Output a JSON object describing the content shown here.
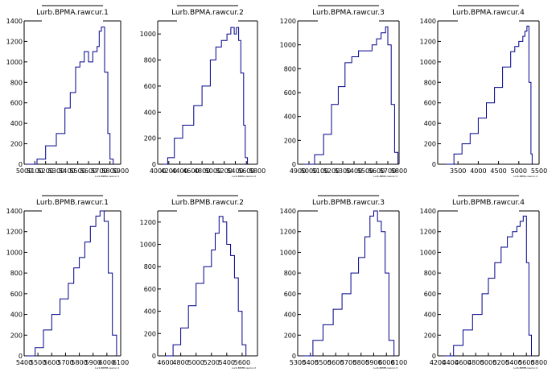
{
  "colors": {
    "hist": "#00008b",
    "axis": "#000000",
    "frame": "#000000",
    "background": "#ffffff"
  },
  "chart_data": [
    {
      "type": "histogram",
      "title": "Lurb.BPMA.rawcur.1",
      "xlabel": "Lurb.BPMA.rawcur.1",
      "xlim": [
        5000,
        5900
      ],
      "ylim": [
        0,
        1400
      ],
      "xticks": [
        5000,
        5100,
        5200,
        5300,
        5400,
        5500,
        5600,
        5700,
        5800,
        5900
      ],
      "xtick_labels": [
        "5000",
        "5100",
        "5200",
        "5300",
        "5400",
        "5500",
        "5600",
        "5700",
        "5800",
        "5900"
      ],
      "yticks": [
        0,
        200,
        400,
        600,
        800,
        1000,
        1200,
        1400
      ],
      "ytick_labels": [
        "0",
        "200",
        "400",
        "600",
        "800",
        "1000",
        "1200",
        "1400"
      ],
      "x": [
        5030,
        5120,
        5200,
        5300,
        5380,
        5430,
        5480,
        5520,
        5560,
        5600,
        5640,
        5680,
        5700,
        5720,
        5750,
        5780,
        5800,
        5830
      ],
      "values": [
        0,
        50,
        180,
        300,
        550,
        700,
        950,
        1000,
        1100,
        1000,
        1100,
        1150,
        1300,
        1340,
        900,
        300,
        50,
        0
      ]
    },
    {
      "type": "histogram",
      "title": "Lurb.BPMA.rawcur.2",
      "xlabel": "Lurb.BPMA.rawcur.2",
      "xlim": [
        4000,
        5800
      ],
      "ylim": [
        0,
        1100
      ],
      "xticks": [
        4000,
        4200,
        4400,
        4600,
        4800,
        5000,
        5200,
        5400,
        5600,
        5800
      ],
      "xtick_labels": [
        "4000",
        "4200",
        "4400",
        "4600",
        "4800",
        "5000",
        "5200",
        "5400",
        "5600",
        "5800"
      ],
      "yticks": [
        0,
        200,
        400,
        600,
        800,
        1000
      ],
      "ytick_labels": [
        "0",
        "200",
        "400",
        "600",
        "800",
        "1000"
      ],
      "x": [
        4100,
        4180,
        4300,
        4450,
        4650,
        4800,
        4950,
        5050,
        5150,
        5250,
        5320,
        5380,
        5420,
        5460,
        5500,
        5550,
        5580,
        5620
      ],
      "values": [
        0,
        50,
        200,
        300,
        450,
        600,
        800,
        900,
        950,
        1000,
        1050,
        1000,
        1050,
        950,
        700,
        300,
        50,
        0
      ]
    },
    {
      "type": "histogram",
      "title": "Lurb.BPMA.rawcur.3",
      "xlabel": "Lurb.BPMA.rawcur.3",
      "xlim": [
        4900,
        5800
      ],
      "ylim": [
        0,
        1200
      ],
      "xticks": [
        4900,
        5000,
        5100,
        5200,
        5300,
        5400,
        5500,
        5600,
        5700,
        5800
      ],
      "xtick_labels": [
        "4900",
        "5000",
        "5100",
        "5200",
        "5300",
        "5400",
        "5500",
        "5600",
        "5700",
        "5800"
      ],
      "yticks": [
        0,
        200,
        400,
        600,
        800,
        1000,
        1200
      ],
      "ytick_labels": [
        "0",
        "200",
        "400",
        "600",
        "800",
        "1000",
        "1200"
      ],
      "x": [
        4960,
        5050,
        5130,
        5200,
        5260,
        5320,
        5380,
        5440,
        5500,
        5560,
        5600,
        5640,
        5680,
        5700,
        5730,
        5760,
        5790
      ],
      "values": [
        0,
        80,
        250,
        500,
        650,
        850,
        900,
        950,
        950,
        1000,
        1050,
        1100,
        1150,
        1000,
        500,
        100,
        0
      ]
    },
    {
      "type": "histogram",
      "title": "Lurb.BPMA.rawcur.4",
      "xlabel": "Lurb.BPMA.rawcur.4",
      "xlim": [
        3000,
        5500
      ],
      "ylim": [
        0,
        1400
      ],
      "xticks": [
        3500,
        4000,
        4500,
        5000,
        5500
      ],
      "xtick_labels": [
        "3500",
        "4000",
        "4500",
        "5000",
        "5500"
      ],
      "yticks": [
        0,
        200,
        400,
        600,
        800,
        1000,
        1200,
        1400
      ],
      "ytick_labels": [
        "0",
        "200",
        "400",
        "600",
        "800",
        "1000",
        "1200",
        "1400"
      ],
      "x": [
        3200,
        3400,
        3600,
        3800,
        4000,
        4200,
        4400,
        4600,
        4800,
        4900,
        5000,
        5100,
        5150,
        5200,
        5250,
        5300,
        5330
      ],
      "values": [
        0,
        100,
        200,
        300,
        450,
        600,
        750,
        950,
        1100,
        1150,
        1200,
        1250,
        1300,
        1350,
        800,
        100,
        0
      ]
    },
    {
      "type": "histogram",
      "title": "Lurb.BPMB.rawcur.1",
      "xlabel": "Lurb.BPMB.rawcur.1",
      "xlim": [
        5400,
        6100
      ],
      "ylim": [
        0,
        1400
      ],
      "xticks": [
        5400,
        5500,
        5600,
        5700,
        5800,
        5900,
        6000,
        6100
      ],
      "xtick_labels": [
        "5400",
        "5500",
        "5600",
        "5700",
        "5800",
        "5900",
        "6000",
        "6100"
      ],
      "yticks": [
        0,
        200,
        400,
        600,
        800,
        1000,
        1200,
        1400
      ],
      "ytick_labels": [
        "0",
        "200",
        "400",
        "600",
        "800",
        "1000",
        "1200",
        "1400"
      ],
      "x": [
        5420,
        5480,
        5540,
        5600,
        5660,
        5720,
        5760,
        5800,
        5840,
        5880,
        5920,
        5950,
        5980,
        6010,
        6040,
        6070
      ],
      "values": [
        0,
        80,
        250,
        400,
        550,
        700,
        850,
        950,
        1100,
        1250,
        1350,
        1400,
        1300,
        800,
        200,
        0
      ]
    },
    {
      "type": "histogram",
      "title": "Lurb.BPMB.rawcur.2",
      "xlabel": "Lurb.BPMB.rawcur.2",
      "xlim": [
        4500,
        5800
      ],
      "ylim": [
        0,
        1300
      ],
      "xticks": [
        4600,
        4800,
        5000,
        5200,
        5400,
        5600
      ],
      "xtick_labels": [
        "4600",
        "4800",
        "5000",
        "5200",
        "5400",
        "5600"
      ],
      "yticks": [
        0,
        200,
        400,
        600,
        800,
        1000,
        1200
      ],
      "ytick_labels": [
        "0",
        "200",
        "400",
        "600",
        "800",
        "1000",
        "1200"
      ],
      "x": [
        4600,
        4700,
        4800,
        4900,
        5000,
        5100,
        5200,
        5250,
        5300,
        5350,
        5400,
        5450,
        5500,
        5550,
        5600,
        5650
      ],
      "values": [
        0,
        100,
        250,
        450,
        650,
        800,
        950,
        1100,
        1250,
        1200,
        1000,
        900,
        700,
        400,
        100,
        0
      ]
    },
    {
      "type": "histogram",
      "title": "Lurb.BPMB.rawcur.3",
      "xlabel": "Lurb.BPMB.rawcur.3",
      "xlim": [
        5300,
        6100
      ],
      "ylim": [
        0,
        1400
      ],
      "xticks": [
        5300,
        5400,
        5500,
        5600,
        5700,
        5800,
        5900,
        6000,
        6100
      ],
      "xtick_labels": [
        "5300",
        "5400",
        "5500",
        "5600",
        "5700",
        "5800",
        "5900",
        "6000",
        "6100"
      ],
      "yticks": [
        0,
        200,
        400,
        600,
        800,
        1000,
        1200,
        1400
      ],
      "ytick_labels": [
        "0",
        "200",
        "400",
        "600",
        "800",
        "1000",
        "1200",
        "1400"
      ],
      "x": [
        5340,
        5420,
        5500,
        5580,
        5650,
        5720,
        5780,
        5830,
        5870,
        5900,
        5930,
        5960,
        5990,
        6020,
        6060
      ],
      "values": [
        0,
        150,
        300,
        450,
        600,
        800,
        950,
        1150,
        1350,
        1400,
        1300,
        1200,
        800,
        150,
        0
      ]
    },
    {
      "type": "histogram",
      "title": "Lurb.BPMB.rawcur.4",
      "xlabel": "Lurb.BPMB.rawcur.4",
      "xlim": [
        4200,
        5800
      ],
      "ylim": [
        0,
        1400
      ],
      "xticks": [
        4200,
        4400,
        4600,
        4800,
        5000,
        5200,
        5400,
        5600,
        5800
      ],
      "xtick_labels": [
        "4200",
        "4400",
        "4600",
        "4800",
        "5000",
        "5200",
        "5400",
        "5600",
        "5800"
      ],
      "yticks": [
        0,
        200,
        400,
        600,
        800,
        1000,
        1200,
        1400
      ],
      "ytick_labels": [
        "0",
        "200",
        "400",
        "600",
        "800",
        "1000",
        "1200",
        "1400"
      ],
      "x": [
        4300,
        4450,
        4600,
        4750,
        4900,
        5000,
        5100,
        5200,
        5300,
        5380,
        5450,
        5500,
        5550,
        5600,
        5640,
        5680
      ],
      "values": [
        0,
        100,
        250,
        400,
        600,
        750,
        900,
        1050,
        1150,
        1200,
        1250,
        1300,
        1350,
        900,
        200,
        0
      ]
    }
  ]
}
